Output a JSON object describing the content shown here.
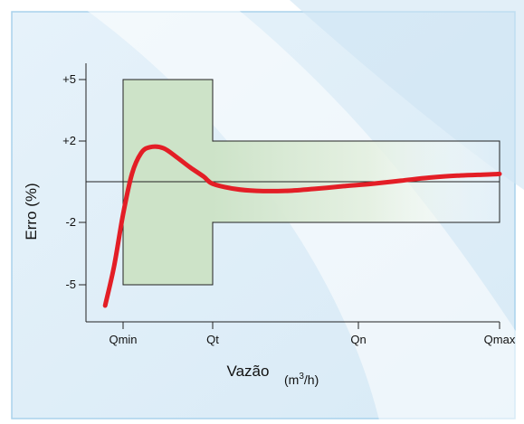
{
  "chart_data": {
    "type": "line",
    "title": "",
    "xlabel": "Vazão",
    "xunit": {
      "base": "(m",
      "sup": "3",
      "rest": "/h)"
    },
    "ylabel": "Erro (%)",
    "x_ticks": [
      "Qmin",
      "Qt",
      "Qn",
      "Qmax"
    ],
    "y_ticks": [
      "+5",
      "+2",
      "-2",
      "-5"
    ],
    "tolerance_band": {
      "low_range": {
        "from": "Qmin",
        "to": "Qt",
        "upper": "+5",
        "lower": "-5"
      },
      "high_range": {
        "from": "Qt",
        "to": "Qmax",
        "upper": "+2",
        "lower": "-2"
      }
    },
    "reference_line": 0,
    "series": [
      {
        "x": [
          -0.2,
          -0.1,
          0.0,
          0.1,
          0.2,
          0.3,
          0.45,
          0.6,
          0.75,
          0.9,
          1.0,
          1.15,
          1.3,
          1.5,
          1.7,
          1.9,
          2.1,
          2.3,
          2.5,
          2.7,
          2.9,
          3.0
        ],
        "y": [
          -6.0,
          -4.1,
          -1.6,
          0.4,
          1.4,
          1.7,
          1.65,
          1.2,
          0.7,
          0.25,
          -0.1,
          -0.35,
          -0.45,
          -0.45,
          -0.35,
          -0.22,
          -0.1,
          0.05,
          0.2,
          0.3,
          0.35,
          0.38
        ]
      }
    ],
    "colors": {
      "curve": "#e31e26",
      "band_fill": "#cde3c8",
      "band_stroke": "#222222",
      "background": "#dfeef8",
      "panel_border": "#a9d2ec"
    }
  }
}
